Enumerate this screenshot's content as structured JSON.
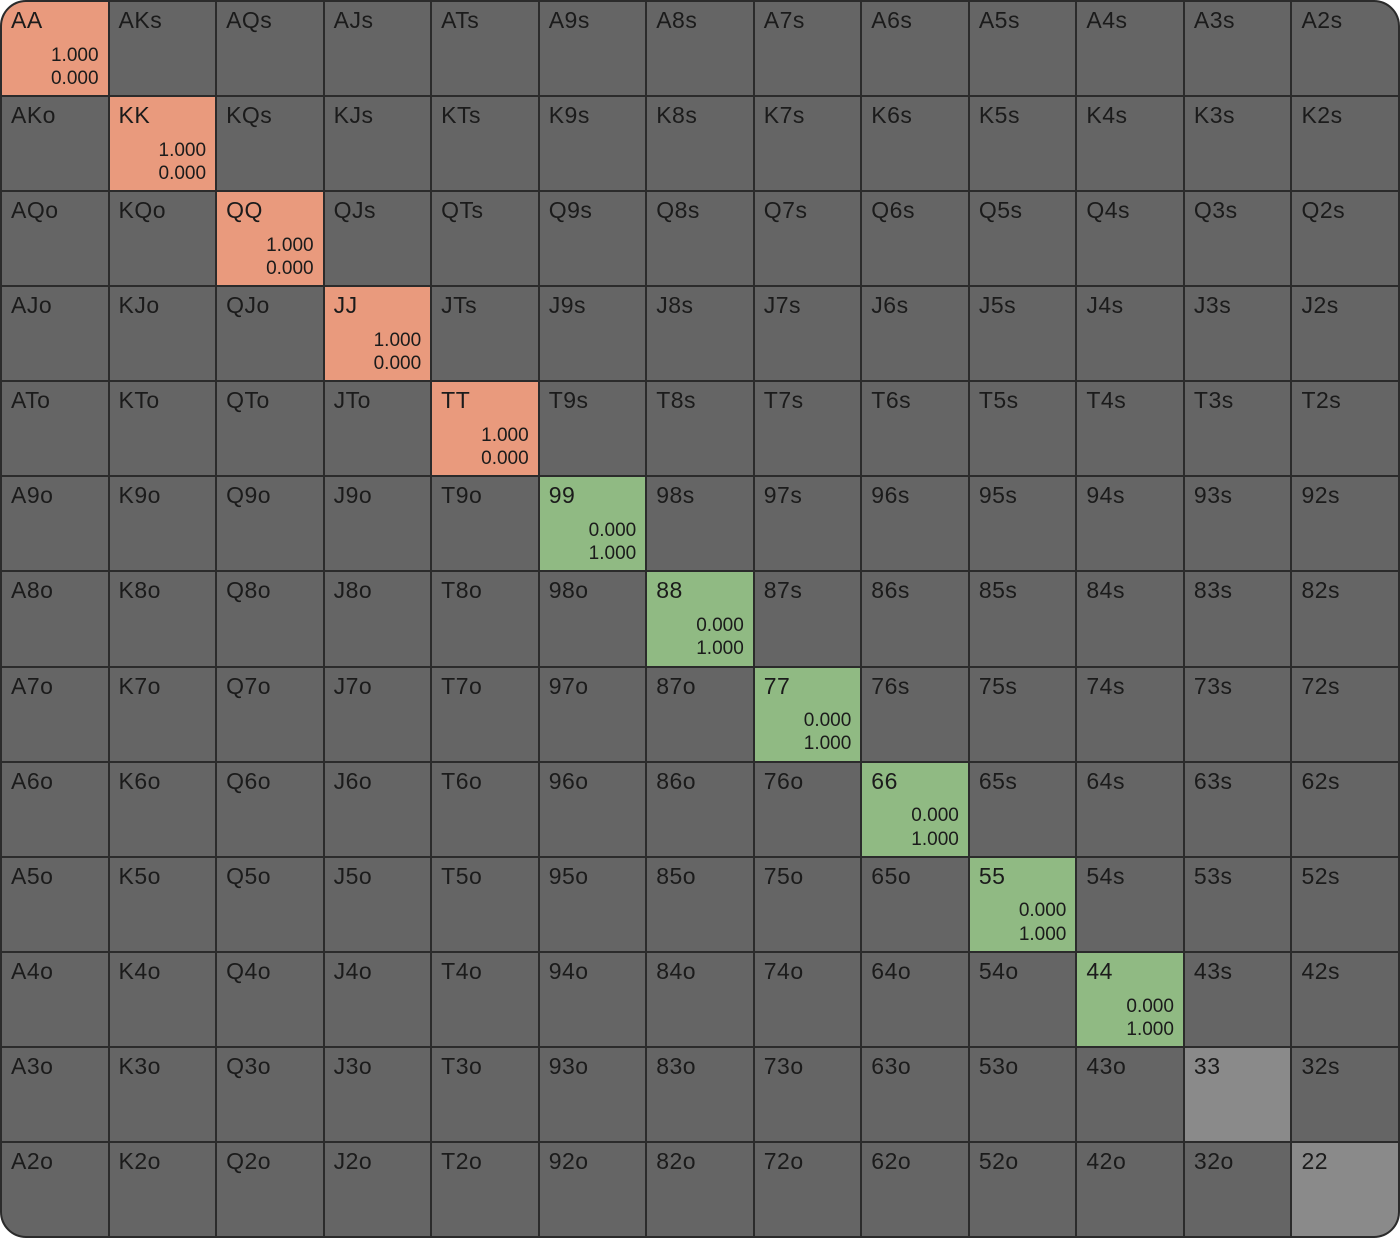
{
  "app": "poker-range-matrix",
  "colors": {
    "grid_line": "#2b2b2b",
    "cell_default": "#656565",
    "cell_light": "#8a8a8a",
    "cell_raise": "#e99a7d",
    "cell_call": "#90ba83",
    "text": "#1b1b1b",
    "page_background": "#ffffff"
  },
  "grid": {
    "rows": [
      [
        {
          "label": "AA",
          "style": "raise",
          "values": [
            "1.000",
            "0.000"
          ]
        },
        {
          "label": "AKs"
        },
        {
          "label": "AQs"
        },
        {
          "label": "AJs"
        },
        {
          "label": "ATs"
        },
        {
          "label": "A9s"
        },
        {
          "label": "A8s"
        },
        {
          "label": "A7s"
        },
        {
          "label": "A6s"
        },
        {
          "label": "A5s"
        },
        {
          "label": "A4s"
        },
        {
          "label": "A3s"
        },
        {
          "label": "A2s"
        }
      ],
      [
        {
          "label": "AKo"
        },
        {
          "label": "KK",
          "style": "raise",
          "values": [
            "1.000",
            "0.000"
          ]
        },
        {
          "label": "KQs"
        },
        {
          "label": "KJs"
        },
        {
          "label": "KTs"
        },
        {
          "label": "K9s"
        },
        {
          "label": "K8s"
        },
        {
          "label": "K7s"
        },
        {
          "label": "K6s"
        },
        {
          "label": "K5s"
        },
        {
          "label": "K4s"
        },
        {
          "label": "K3s"
        },
        {
          "label": "K2s"
        }
      ],
      [
        {
          "label": "AQo"
        },
        {
          "label": "KQo"
        },
        {
          "label": "QQ",
          "style": "raise",
          "values": [
            "1.000",
            "0.000"
          ]
        },
        {
          "label": "QJs"
        },
        {
          "label": "QTs"
        },
        {
          "label": "Q9s"
        },
        {
          "label": "Q8s"
        },
        {
          "label": "Q7s"
        },
        {
          "label": "Q6s"
        },
        {
          "label": "Q5s"
        },
        {
          "label": "Q4s"
        },
        {
          "label": "Q3s"
        },
        {
          "label": "Q2s"
        }
      ],
      [
        {
          "label": "AJo"
        },
        {
          "label": "KJo"
        },
        {
          "label": "QJo"
        },
        {
          "label": "JJ",
          "style": "raise",
          "values": [
            "1.000",
            "0.000"
          ]
        },
        {
          "label": "JTs"
        },
        {
          "label": "J9s"
        },
        {
          "label": "J8s"
        },
        {
          "label": "J7s"
        },
        {
          "label": "J6s"
        },
        {
          "label": "J5s"
        },
        {
          "label": "J4s"
        },
        {
          "label": "J3s"
        },
        {
          "label": "J2s"
        }
      ],
      [
        {
          "label": "ATo"
        },
        {
          "label": "KTo"
        },
        {
          "label": "QTo"
        },
        {
          "label": "JTo"
        },
        {
          "label": "TT",
          "style": "raise",
          "values": [
            "1.000",
            "0.000"
          ]
        },
        {
          "label": "T9s"
        },
        {
          "label": "T8s"
        },
        {
          "label": "T7s"
        },
        {
          "label": "T6s"
        },
        {
          "label": "T5s"
        },
        {
          "label": "T4s"
        },
        {
          "label": "T3s"
        },
        {
          "label": "T2s"
        }
      ],
      [
        {
          "label": "A9o"
        },
        {
          "label": "K9o"
        },
        {
          "label": "Q9o"
        },
        {
          "label": "J9o"
        },
        {
          "label": "T9o"
        },
        {
          "label": "99",
          "style": "call",
          "values": [
            "0.000",
            "1.000"
          ]
        },
        {
          "label": "98s"
        },
        {
          "label": "97s"
        },
        {
          "label": "96s"
        },
        {
          "label": "95s"
        },
        {
          "label": "94s"
        },
        {
          "label": "93s"
        },
        {
          "label": "92s"
        }
      ],
      [
        {
          "label": "A8o"
        },
        {
          "label": "K8o"
        },
        {
          "label": "Q8o"
        },
        {
          "label": "J8o"
        },
        {
          "label": "T8o"
        },
        {
          "label": "98o"
        },
        {
          "label": "88",
          "style": "call",
          "values": [
            "0.000",
            "1.000"
          ]
        },
        {
          "label": "87s"
        },
        {
          "label": "86s"
        },
        {
          "label": "85s"
        },
        {
          "label": "84s"
        },
        {
          "label": "83s"
        },
        {
          "label": "82s"
        }
      ],
      [
        {
          "label": "A7o"
        },
        {
          "label": "K7o"
        },
        {
          "label": "Q7o"
        },
        {
          "label": "J7o"
        },
        {
          "label": "T7o"
        },
        {
          "label": "97o"
        },
        {
          "label": "87o"
        },
        {
          "label": "77",
          "style": "call",
          "values": [
            "0.000",
            "1.000"
          ]
        },
        {
          "label": "76s"
        },
        {
          "label": "75s"
        },
        {
          "label": "74s"
        },
        {
          "label": "73s"
        },
        {
          "label": "72s"
        }
      ],
      [
        {
          "label": "A6o"
        },
        {
          "label": "K6o"
        },
        {
          "label": "Q6o"
        },
        {
          "label": "J6o"
        },
        {
          "label": "T6o"
        },
        {
          "label": "96o"
        },
        {
          "label": "86o"
        },
        {
          "label": "76o"
        },
        {
          "label": "66",
          "style": "call",
          "values": [
            "0.000",
            "1.000"
          ]
        },
        {
          "label": "65s"
        },
        {
          "label": "64s"
        },
        {
          "label": "63s"
        },
        {
          "label": "62s"
        }
      ],
      [
        {
          "label": "A5o"
        },
        {
          "label": "K5o"
        },
        {
          "label": "Q5o"
        },
        {
          "label": "J5o"
        },
        {
          "label": "T5o"
        },
        {
          "label": "95o"
        },
        {
          "label": "85o"
        },
        {
          "label": "75o"
        },
        {
          "label": "65o"
        },
        {
          "label": "55",
          "style": "call",
          "values": [
            "0.000",
            "1.000"
          ]
        },
        {
          "label": "54s"
        },
        {
          "label": "53s"
        },
        {
          "label": "52s"
        }
      ],
      [
        {
          "label": "A4o"
        },
        {
          "label": "K4o"
        },
        {
          "label": "Q4o"
        },
        {
          "label": "J4o"
        },
        {
          "label": "T4o"
        },
        {
          "label": "94o"
        },
        {
          "label": "84o"
        },
        {
          "label": "74o"
        },
        {
          "label": "64o"
        },
        {
          "label": "54o"
        },
        {
          "label": "44",
          "style": "call",
          "values": [
            "0.000",
            "1.000"
          ]
        },
        {
          "label": "43s"
        },
        {
          "label": "42s"
        }
      ],
      [
        {
          "label": "A3o"
        },
        {
          "label": "K3o"
        },
        {
          "label": "Q3o"
        },
        {
          "label": "J3o"
        },
        {
          "label": "T3o"
        },
        {
          "label": "93o"
        },
        {
          "label": "83o"
        },
        {
          "label": "73o"
        },
        {
          "label": "63o"
        },
        {
          "label": "53o"
        },
        {
          "label": "43o"
        },
        {
          "label": "33",
          "style": "light"
        },
        {
          "label": "32s"
        }
      ],
      [
        {
          "label": "A2o"
        },
        {
          "label": "K2o"
        },
        {
          "label": "Q2o"
        },
        {
          "label": "J2o"
        },
        {
          "label": "T2o"
        },
        {
          "label": "92o"
        },
        {
          "label": "82o"
        },
        {
          "label": "72o"
        },
        {
          "label": "62o"
        },
        {
          "label": "52o"
        },
        {
          "label": "42o"
        },
        {
          "label": "32o"
        },
        {
          "label": "22",
          "style": "light"
        }
      ]
    ]
  }
}
